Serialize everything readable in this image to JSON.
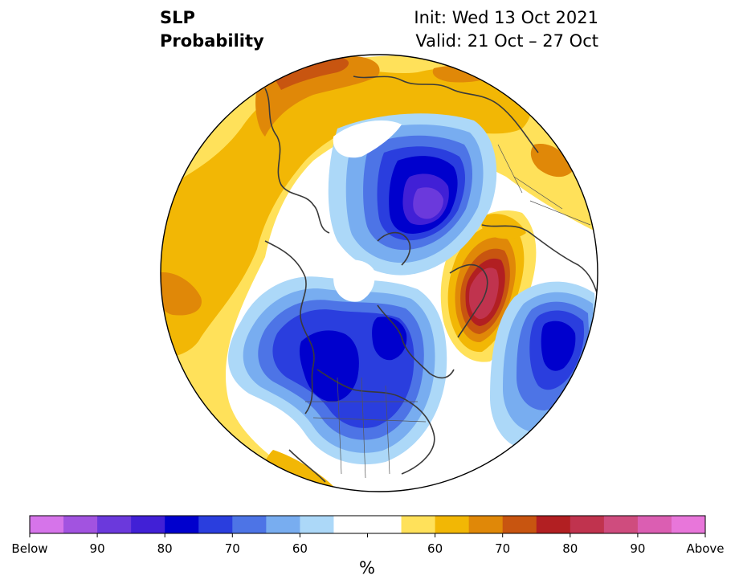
{
  "title": {
    "left_line1": "SLP",
    "left_line2": "Probability",
    "right_line1": "Init: Wed 13 Oct 2021",
    "right_line2": "Valid: 21 Oct – 27 Oct"
  },
  "colorbar": {
    "unit": "%",
    "colors": [
      "#d674ea",
      "#a253e0",
      "#6b39dc",
      "#4120d6",
      "#0000cd",
      "#2a3ede",
      "#4d74e6",
      "#78adf0",
      "#acd8f8",
      "#ffffff",
      "#ffffff",
      "#ffe15a",
      "#f2b705",
      "#e08808",
      "#c85510",
      "#b21f22",
      "#c0334e",
      "#cf4c7e",
      "#db5eb2",
      "#e876da"
    ],
    "tick_labels": [
      "Below",
      "90",
      "80",
      "70",
      "60",
      "60",
      "70",
      "80",
      "90",
      "Above"
    ]
  },
  "palette": {
    "below": [
      "#6b39dc",
      "#0000cd",
      "#2a3ede",
      "#4d74e6",
      "#78adf0",
      "#acd8f8"
    ],
    "above": [
      "#ffe15a",
      "#f2b705",
      "#e08808",
      "#c85510",
      "#b21f22",
      "#c0334e"
    ],
    "coast": "#3a3a3a",
    "border": "#555555"
  }
}
